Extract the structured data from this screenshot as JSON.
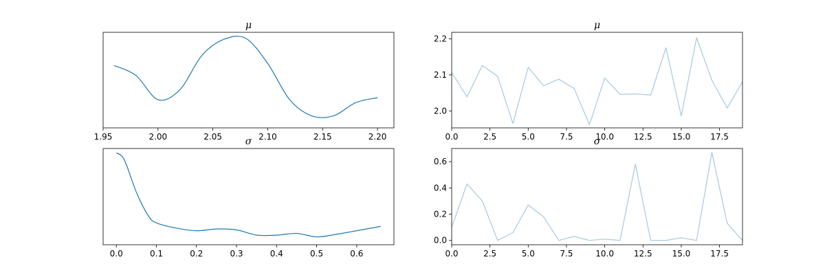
{
  "chart_data": [
    {
      "type": "line",
      "title": "μ",
      "x": [
        1.96,
        1.98,
        2.0,
        2.02,
        2.04,
        2.06,
        2.08,
        2.1,
        2.12,
        2.14,
        2.16,
        2.18,
        2.2
      ],
      "series": [
        {
          "values": [
            0.72,
            0.62,
            0.38,
            0.48,
            0.82,
            0.98,
            0.99,
            0.74,
            0.38,
            0.22,
            0.22,
            0.35,
            0.4
          ]
        }
      ],
      "xlim": [
        1.95,
        2.215
      ],
      "ylim": [
        0.1,
        1.05
      ],
      "xticks": [
        "1.95",
        "2.00",
        "2.05",
        "2.10",
        "2.15",
        "2.20"
      ],
      "xlabel": "",
      "ylabel": "",
      "yticks_visible": false
    },
    {
      "type": "line",
      "title": "μ",
      "x": [
        0,
        1,
        2,
        3,
        4,
        5,
        6,
        7,
        8,
        9,
        10,
        11,
        12,
        13,
        14,
        15,
        16,
        17,
        18,
        19
      ],
      "series": [
        {
          "values": [
            2.107,
            2.039,
            2.126,
            2.096,
            1.965,
            2.121,
            2.07,
            2.088,
            2.062,
            1.962,
            2.091,
            2.046,
            2.047,
            2.044,
            2.175,
            1.986,
            2.203,
            2.085,
            2.008,
            2.081
          ]
        }
      ],
      "xlim": [
        0,
        19
      ],
      "ylim": [
        1.953,
        2.218
      ],
      "xticks": [
        "0.0",
        "2.5",
        "5.0",
        "7.5",
        "10.0",
        "12.5",
        "15.0",
        "17.5"
      ],
      "yticks": [
        "2.0",
        "2.1",
        "2.2"
      ],
      "xlabel": "",
      "ylabel": ""
    },
    {
      "type": "line",
      "title": "σ",
      "x": [
        0.0,
        0.02,
        0.05,
        0.08,
        0.1,
        0.15,
        0.2,
        0.25,
        0.3,
        0.35,
        0.4,
        0.45,
        0.5,
        0.55,
        0.6,
        0.66
      ],
      "series": [
        {
          "values": [
            1.0,
            0.92,
            0.55,
            0.28,
            0.2,
            0.14,
            0.11,
            0.13,
            0.12,
            0.06,
            0.06,
            0.08,
            0.04,
            0.07,
            0.11,
            0.16
          ]
        }
      ],
      "xlim": [
        -0.033,
        0.693
      ],
      "ylim": [
        -0.05,
        1.05
      ],
      "xticks": [
        "0.0",
        "0.1",
        "0.2",
        "0.3",
        "0.4",
        "0.5",
        "0.6"
      ],
      "xlabel": "",
      "ylabel": "",
      "yticks_visible": false
    },
    {
      "type": "line",
      "title": "σ",
      "x": [
        0,
        1,
        2,
        3,
        4,
        5,
        6,
        7,
        8,
        9,
        10,
        11,
        12,
        13,
        14,
        15,
        16,
        17,
        18,
        19
      ],
      "series": [
        {
          "values": [
            0.1,
            0.43,
            0.3,
            0.0,
            0.06,
            0.27,
            0.18,
            0.0,
            0.03,
            0.0,
            0.01,
            0.0,
            0.58,
            0.0,
            0.0,
            0.02,
            0.0,
            0.67,
            0.13,
            0.0
          ]
        }
      ],
      "xlim": [
        0,
        19
      ],
      "ylim": [
        -0.033,
        0.7
      ],
      "xticks": [
        "0.0",
        "2.5",
        "5.0",
        "7.5",
        "10.0",
        "12.5",
        "15.0",
        "17.5"
      ],
      "yticks": [
        "0.0",
        "0.2",
        "0.4",
        "0.6"
      ],
      "xlabel": "",
      "ylabel": ""
    }
  ],
  "colors": {
    "kde_line": "#1f77b4",
    "trace_line": "#a6c8e0",
    "axes": "#000000"
  }
}
